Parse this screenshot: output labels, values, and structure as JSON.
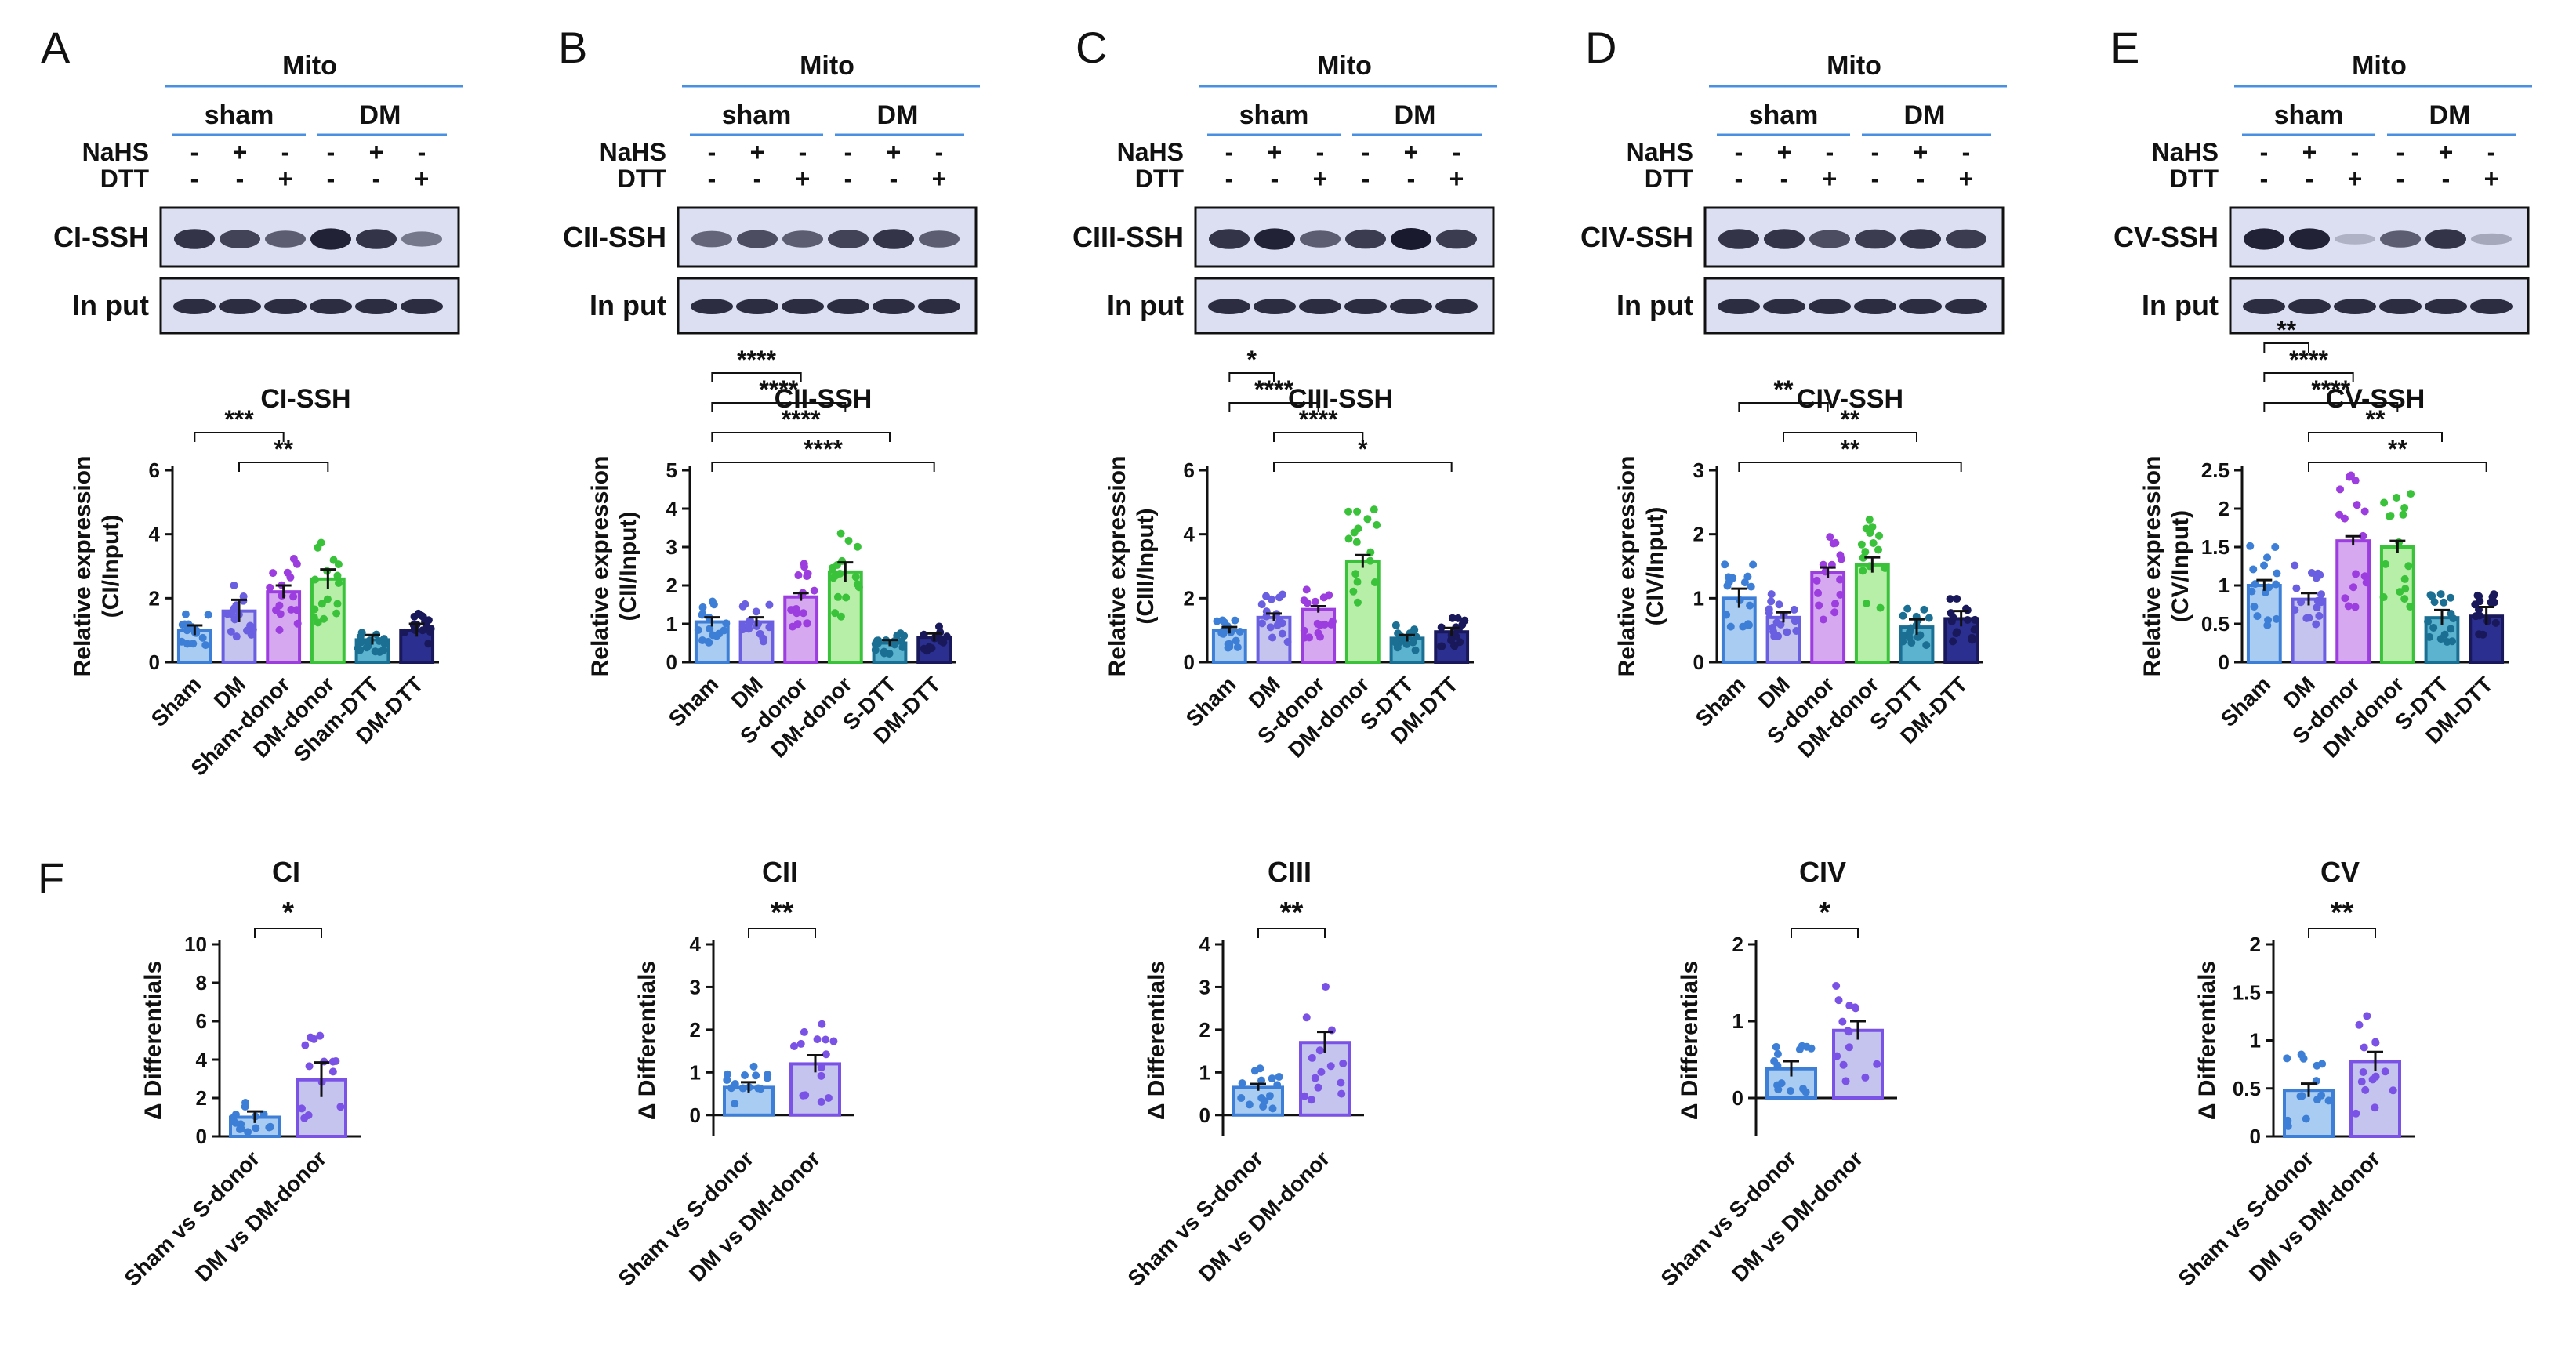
{
  "mito_label": "Mito",
  "group_labels": [
    "sham",
    "DM"
  ],
  "treatment_rows": [
    {
      "label": "NaHS",
      "signs": [
        "-",
        "+",
        "-",
        "-",
        "+",
        "-"
      ]
    },
    {
      "label": "DTT",
      "signs": [
        "-",
        "-",
        "+",
        "-",
        "-",
        "+"
      ]
    }
  ],
  "input_label": "In put",
  "colors": {
    "blot_bg": "#dcdff2",
    "band": "#1a1a2e",
    "header_line": "#4a90e2",
    "bars": [
      "#a9cdf2",
      "#c5c4ee",
      "#d6a8ef",
      "#b8efa8",
      "#5bb3cf",
      "#2b2f8f"
    ],
    "edges": [
      "#3d7fd6",
      "#6a5fe0",
      "#9b3ddf",
      "#39c23a",
      "#1a6f92",
      "#18185a"
    ],
    "pair_bars": [
      "#a9cdf2",
      "#c5c4ee"
    ],
    "pair_edges": [
      "#3d7fd6",
      "#7a52e6"
    ]
  },
  "chart_data": [
    {
      "panel": "A",
      "type": "bar",
      "blot_label": "CI-SSH",
      "title": "CI-SSH",
      "ylabel": [
        "Relative expression",
        "(CI/Input)"
      ],
      "categories": [
        "Sham",
        "DM",
        "Sham-donor",
        "DM-donor",
        "Sham-DTT",
        "DM-DTT"
      ],
      "values": [
        1.0,
        1.6,
        2.2,
        2.6,
        0.7,
        1.0
      ],
      "sem": [
        0.15,
        0.35,
        0.2,
        0.3,
        0.15,
        0.2
      ],
      "ylim": [
        0,
        6
      ],
      "yticks": [
        0,
        2,
        4,
        6
      ],
      "band_intensity": [
        0.85,
        0.75,
        0.6,
        0.95,
        0.85,
        0.45
      ],
      "significance": [
        {
          "from": 0,
          "to": 2,
          "label": "***"
        },
        {
          "from": 1,
          "to": 3,
          "label": "**"
        }
      ]
    },
    {
      "panel": "B",
      "type": "bar",
      "blot_label": "CII-SSH",
      "title": "CII-SSH",
      "ylabel": [
        "Relative expression",
        "(CII/Input)"
      ],
      "categories": [
        "Sham",
        "DM",
        "S-donor",
        "DM-donor",
        "S-DTT",
        "DM-DTT"
      ],
      "values": [
        1.05,
        1.05,
        1.7,
        2.35,
        0.5,
        0.65
      ],
      "sem": [
        0.12,
        0.12,
        0.1,
        0.25,
        0.08,
        0.1
      ],
      "ylim": [
        0,
        5
      ],
      "yticks": [
        0,
        1,
        2,
        3,
        4,
        5
      ],
      "band_intensity": [
        0.55,
        0.7,
        0.6,
        0.75,
        0.85,
        0.6
      ],
      "significance": [
        {
          "from": 0,
          "to": 2,
          "label": "****"
        },
        {
          "from": 0,
          "to": 3,
          "label": "****"
        },
        {
          "from": 0,
          "to": 4,
          "label": "****"
        },
        {
          "from": 0,
          "to": 5,
          "label": "****"
        }
      ]
    },
    {
      "panel": "C",
      "type": "bar",
      "blot_label": "CIII-SSH",
      "title": "CIII-SSH",
      "ylabel": [
        "Relative expression",
        "(CIII/Input)"
      ],
      "categories": [
        "Sham",
        "DM",
        "S-donor",
        "DM-donor",
        "S-DTT",
        "DM-DTT"
      ],
      "values": [
        1.0,
        1.4,
        1.65,
        3.15,
        0.75,
        0.95
      ],
      "sem": [
        0.1,
        0.12,
        0.1,
        0.2,
        0.1,
        0.12
      ],
      "ylim": [
        0,
        6
      ],
      "yticks": [
        0,
        2,
        4,
        6
      ],
      "band_intensity": [
        0.85,
        0.95,
        0.6,
        0.8,
        1.0,
        0.8
      ],
      "significance": [
        {
          "from": 0,
          "to": 1,
          "label": "*"
        },
        {
          "from": 0,
          "to": 2,
          "label": "****"
        },
        {
          "from": 1,
          "to": 3,
          "label": "****"
        },
        {
          "from": 1,
          "to": 5,
          "label": "*"
        }
      ]
    },
    {
      "panel": "D",
      "type": "bar",
      "blot_label": "CIV-SSH",
      "title": "CIV-SSH",
      "ylabel": [
        "Relative expression",
        "(CIV/Input)"
      ],
      "categories": [
        "Sham",
        "DM",
        "S-donor",
        "DM-donor",
        "S-DTT",
        "DM-DTT"
      ],
      "values": [
        1.0,
        0.7,
        1.4,
        1.52,
        0.55,
        0.68
      ],
      "sem": [
        0.15,
        0.08,
        0.08,
        0.12,
        0.12,
        0.12
      ],
      "ylim": [
        0,
        3
      ],
      "yticks": [
        0,
        1,
        2,
        3
      ],
      "band_intensity": [
        0.85,
        0.85,
        0.7,
        0.8,
        0.85,
        0.8
      ],
      "significance": [
        {
          "from": 0,
          "to": 2,
          "label": "**"
        },
        {
          "from": 1,
          "to": 4,
          "label": "**"
        },
        {
          "from": 0,
          "to": 5,
          "label": "**"
        }
      ]
    },
    {
      "panel": "E",
      "type": "bar",
      "blot_label": "CV-SSH",
      "title": "CV-SSH",
      "ylabel": [
        "Relative expression",
        "(CV/Input)"
      ],
      "categories": [
        "Sham",
        "DM",
        "S-donor",
        "DM-donor",
        "S-DTT",
        "DM-DTT"
      ],
      "values": [
        1.0,
        0.82,
        1.58,
        1.5,
        0.58,
        0.6
      ],
      "sem": [
        0.07,
        0.08,
        0.06,
        0.08,
        0.1,
        0.12
      ],
      "ylim": [
        0,
        2.5
      ],
      "yticks": [
        0.0,
        0.5,
        1.0,
        1.5,
        2.0,
        2.5
      ],
      "band_intensity": [
        0.95,
        0.95,
        0.1,
        0.6,
        0.85,
        0.15
      ],
      "significance": [
        {
          "from": 0,
          "to": 1,
          "label": "**"
        },
        {
          "from": 0,
          "to": 2,
          "label": "****"
        },
        {
          "from": 0,
          "to": 3,
          "label": "****"
        },
        {
          "from": 1,
          "to": 4,
          "label": "**"
        },
        {
          "from": 1,
          "to": 5,
          "label": "**"
        }
      ]
    },
    {
      "panel": "F",
      "type": "bar",
      "title": "CI",
      "ylabel": "Δ Differentials",
      "categories": [
        "Sham vs S-donor",
        "DM vs DM-donor"
      ],
      "values": [
        1.0,
        2.95
      ],
      "sem": [
        0.3,
        0.9
      ],
      "ylim": [
        0,
        10
      ],
      "yticks": [
        0,
        2,
        4,
        6,
        8,
        10
      ],
      "significance": "*"
    },
    {
      "type": "bar",
      "title": "CII",
      "ylabel": "Δ Differentials",
      "categories": [
        "Sham vs S-donor",
        "DM vs DM-donor"
      ],
      "values": [
        0.65,
        1.2
      ],
      "sem": [
        0.12,
        0.2
      ],
      "ylim": [
        -0.5,
        4
      ],
      "yticks": [
        0,
        1,
        2,
        3,
        4
      ],
      "significance": "**"
    },
    {
      "type": "bar",
      "title": "CIII",
      "ylabel": "Δ Differentials",
      "categories": [
        "Sham vs S-donor",
        "DM vs DM-donor"
      ],
      "values": [
        0.65,
        1.7
      ],
      "sem": [
        0.08,
        0.25
      ],
      "ylim": [
        -0.5,
        4
      ],
      "yticks": [
        0,
        1,
        2,
        3,
        4
      ],
      "significance": "**"
    },
    {
      "type": "bar",
      "title": "CIV",
      "ylabel": "Δ Differentials",
      "categories": [
        "Sham vs S-donor",
        "DM vs DM-donor"
      ],
      "values": [
        0.38,
        0.88
      ],
      "sem": [
        0.1,
        0.12
      ],
      "ylim": [
        -0.5,
        2
      ],
      "yticks": [
        0,
        1,
        2
      ],
      "significance": "*"
    },
    {
      "type": "bar",
      "title": "CV",
      "ylabel": "Δ Differentials",
      "categories": [
        "Sham vs S-donor",
        "DM vs DM-donor"
      ],
      "values": [
        0.48,
        0.78
      ],
      "sem": [
        0.07,
        0.1
      ],
      "ylim": [
        0,
        2.0
      ],
      "yticks": [
        0.0,
        0.5,
        1.0,
        1.5,
        2.0
      ],
      "significance": "**"
    }
  ]
}
